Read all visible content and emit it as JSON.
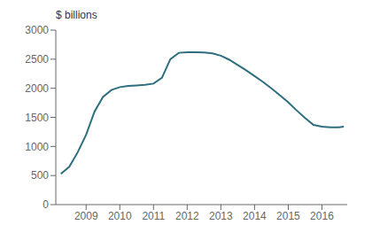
{
  "chart_data": {
    "type": "line",
    "title": "$ billions",
    "color": "#2e6e7e",
    "grid": false,
    "x": [
      2008.25,
      2008.5,
      2008.75,
      2009.0,
      2009.25,
      2009.5,
      2009.75,
      2010.0,
      2010.25,
      2010.5,
      2010.75,
      2011.0,
      2011.25,
      2011.5,
      2011.75,
      2012.0,
      2012.25,
      2012.5,
      2012.75,
      2013.0,
      2013.25,
      2013.5,
      2013.75,
      2014.0,
      2014.25,
      2014.5,
      2014.75,
      2015.0,
      2015.25,
      2015.5,
      2015.75,
      2016.0,
      2016.25,
      2016.5,
      2016.65
    ],
    "values": [
      530,
      650,
      900,
      1200,
      1600,
      1850,
      1970,
      2020,
      2040,
      2050,
      2060,
      2080,
      2180,
      2500,
      2610,
      2620,
      2620,
      2615,
      2600,
      2560,
      2490,
      2400,
      2310,
      2210,
      2110,
      2000,
      1880,
      1760,
      1620,
      1490,
      1370,
      1340,
      1330,
      1330,
      1340
    ],
    "xlim": [
      2008.1,
      2016.75
    ],
    "xticks": [
      2009,
      2010,
      2011,
      2012,
      2013,
      2014,
      2015,
      2016
    ],
    "ylim": [
      0,
      3000
    ],
    "yticks": [
      0,
      500,
      1000,
      1500,
      2000,
      2500,
      3000
    ]
  }
}
